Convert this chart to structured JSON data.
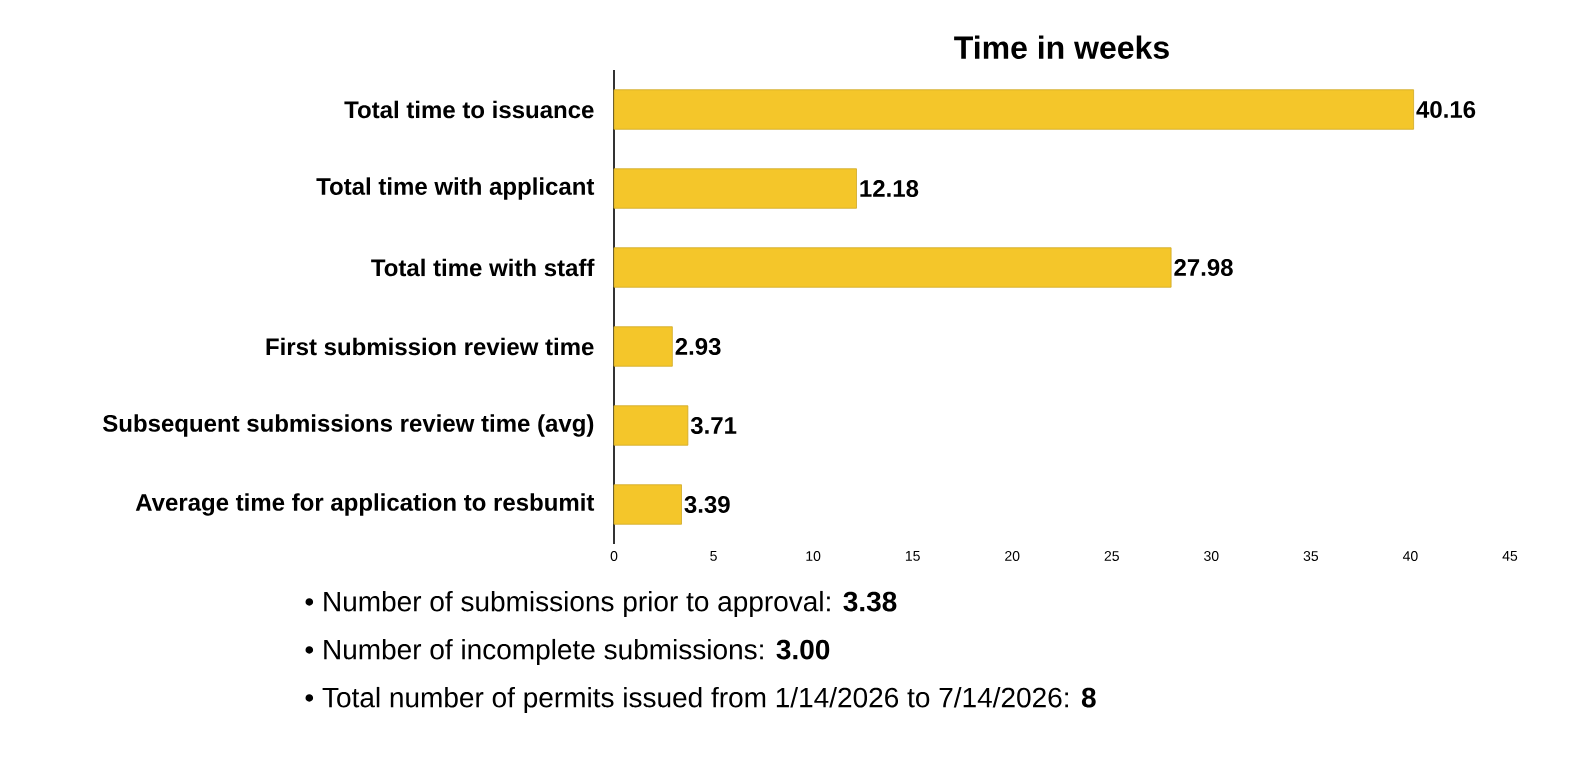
{
  "chart_data": {
    "type": "bar",
    "orientation": "horizontal",
    "title": "Time in weeks",
    "categories": [
      "Total time to issuance",
      "Total time with applicant",
      "Total time with staff",
      "First submission review time",
      "Subsequent submissions review time (avg)",
      "Average time for application to resbumit"
    ],
    "values": [
      40.16,
      12.18,
      27.98,
      2.93,
      3.71,
      3.39
    ],
    "color": "#f4c62a",
    "xlim": [
      0,
      45
    ],
    "xticks": [
      0,
      5,
      10,
      15,
      20,
      25,
      30,
      35,
      40,
      45
    ],
    "data_labels": true,
    "annotations": [
      "• Number of submissions prior to approval: **3.38**",
      "• Number of incomplete submissions:  **3.00**",
      "• Total number of permits issued from 1/14/2026 to 7/14/2026: **8**"
    ]
  }
}
